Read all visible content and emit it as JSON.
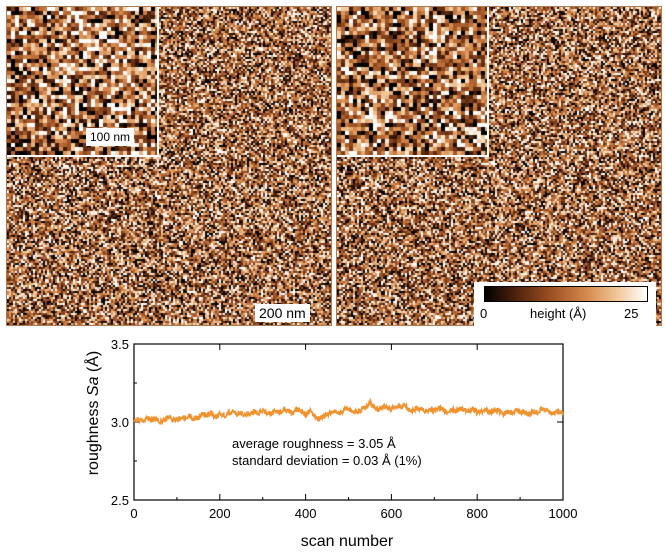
{
  "images": {
    "left": {
      "inset_scale": "100 nm",
      "scale": "200 nm"
    },
    "colorbar": {
      "min": "0",
      "label": "height (Å)",
      "max": "25"
    }
  },
  "colors": {
    "line": "#f0922e",
    "axis": "#000000"
  },
  "chart_data": {
    "type": "line",
    "xlabel": "scan number",
    "ylabel_prefix": "roughness ",
    "ylabel_var": "Sa",
    "ylabel_suffix": " (Å)",
    "xlim": [
      0,
      1000
    ],
    "ylim": [
      2.5,
      3.5
    ],
    "xticks": [
      0,
      200,
      400,
      600,
      800,
      1000
    ],
    "yticks": [
      "2.5",
      "3.0",
      "3.5"
    ],
    "annotations": [
      "average roughness = 3.05 Å",
      "standard deviation = 0.03 Å (1%)"
    ],
    "series": [
      {
        "x_step": 10,
        "values": [
          3.01,
          3.02,
          3.0,
          3.03,
          3.01,
          3.02,
          3.0,
          3.01,
          3.03,
          3.02,
          3.01,
          3.03,
          3.02,
          3.04,
          3.02,
          3.03,
          3.05,
          3.04,
          3.06,
          3.03,
          3.05,
          3.04,
          3.06,
          3.07,
          3.05,
          3.06,
          3.04,
          3.05,
          3.07,
          3.06,
          3.08,
          3.06,
          3.05,
          3.07,
          3.06,
          3.08,
          3.07,
          3.06,
          3.08,
          3.07,
          3.05,
          3.07,
          3.04,
          3.02,
          3.03,
          3.05,
          3.06,
          3.07,
          3.05,
          3.08,
          3.09,
          3.07,
          3.06,
          3.08,
          3.1,
          3.13,
          3.09,
          3.08,
          3.1,
          3.09,
          3.08,
          3.1,
          3.09,
          3.11,
          3.08,
          3.07,
          3.09,
          3.08,
          3.07,
          3.08,
          3.07,
          3.09,
          3.08,
          3.06,
          3.08,
          3.07,
          3.09,
          3.08,
          3.07,
          3.09,
          3.06,
          3.07,
          3.08,
          3.06,
          3.08,
          3.07,
          3.05,
          3.07,
          3.06,
          3.08,
          3.06,
          3.07,
          3.05,
          3.07,
          3.06,
          3.08,
          3.07,
          3.06,
          3.05,
          3.07,
          3.06
        ]
      }
    ]
  }
}
